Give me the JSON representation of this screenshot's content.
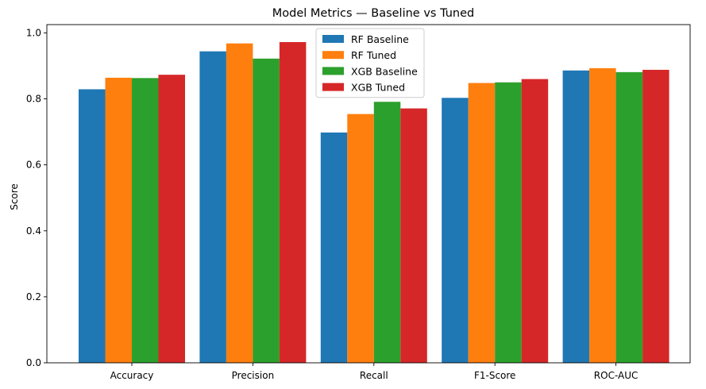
{
  "chart_data": {
    "type": "bar",
    "title": "Model Metrics — Baseline vs Tuned",
    "xlabel": "",
    "ylabel": "Score",
    "categories": [
      "Accuracy",
      "Precision",
      "Recall",
      "F1-Score",
      "ROC-AUC"
    ],
    "series": [
      {
        "name": "RF Baseline",
        "color": "#1f77b4",
        "values": [
          0.829,
          0.944,
          0.698,
          0.803,
          0.886
        ]
      },
      {
        "name": "RF Tuned",
        "color": "#ff7f0e",
        "values": [
          0.864,
          0.968,
          0.754,
          0.848,
          0.893
        ]
      },
      {
        "name": "XGB Baseline",
        "color": "#2ca02c",
        "values": [
          0.863,
          0.922,
          0.791,
          0.85,
          0.881
        ]
      },
      {
        "name": "XGB Tuned",
        "color": "#d62728",
        "values": [
          0.873,
          0.972,
          0.771,
          0.86,
          0.888
        ]
      }
    ],
    "yticks": [
      "0.0",
      "0.2",
      "0.4",
      "0.6",
      "0.8",
      "1.0"
    ],
    "ylim": [
      0,
      1.025
    ],
    "legend_position": "top-center",
    "grid": false
  }
}
